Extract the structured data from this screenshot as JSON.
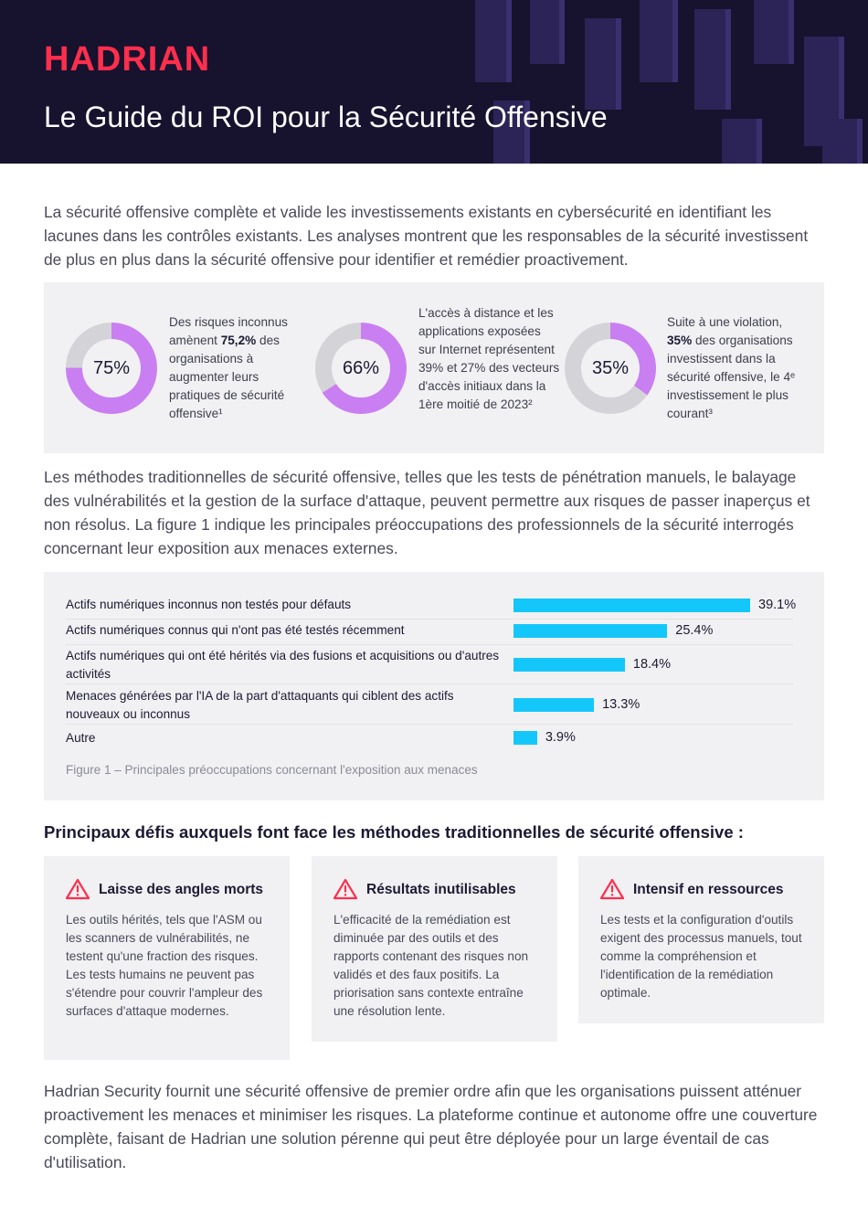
{
  "header": {
    "logo": "HADRIAN",
    "title": "Le Guide du ROI pour la Sécurité Offensive"
  },
  "intro": "La sécurité offensive complète et valide les investissements existants en cybersécurité en identifiant les lacunes dans les contrôles existants. Les analyses montrent que les responsables de la sécurité investissent de plus en plus dans la sécurité offensive pour identifier et remédier proactivement.",
  "stats": [
    {
      "pct_label": "75%",
      "value": 0.752,
      "text_before": "Des risques inconnus amènent ",
      "bold": "75,2%",
      "text_after": " des organisations à augmenter leurs pratiques de sécurité offensive¹"
    },
    {
      "pct_label": "66%",
      "value": 0.66,
      "text_before": "L'accès à distance et les applications exposées sur Internet représentent 39% et 27% des vecteurs d'accès initiaux dans la 1ère moitié de 2023²",
      "bold": "",
      "text_after": ""
    },
    {
      "pct_label": "35%",
      "value": 0.35,
      "text_before": "Suite à une violation, ",
      "bold": "35%",
      "text_after": " des organisations investissent dans la sécurité offensive, le 4ᵉ investissement le plus courant³"
    }
  ],
  "donut_colors": {
    "fill": "#c97ff2",
    "track": "#d4d4d8"
  },
  "para2": "Les méthodes traditionnelles de sécurité offensive, telles que les tests de pénétration manuels, le balayage des vulnérabilités et la gestion de la surface d'attaque, peuvent permettre aux risques de passer inaperçus et non résolus. La figure 1 indique les principales préoccupations des professionnels de la sécurité interrogés concernant leur exposition aux menaces externes.",
  "chart_data": {
    "type": "bar",
    "orientation": "horizontal",
    "categories": [
      "Actifs numériques inconnus non testés pour défauts",
      "Actifs numériques connus qui n'ont pas été testés récemment",
      "Actifs numériques qui ont été hérités via des fusions et acquisitions ou d'autres activités",
      "Menaces générées par l'IA de la part d'attaquants qui ciblent des actifs nouveaux ou inconnus",
      "Autre"
    ],
    "values": [
      39.1,
      25.4,
      18.4,
      13.3,
      3.9
    ],
    "value_labels": [
      "39.1%",
      "25.4%",
      "18.4%",
      "13.3%",
      "3.9%"
    ],
    "bar_color": "#14c7fa",
    "caption": "Figure 1 – Principales préoccupations concernant l'exposition aux menaces"
  },
  "challenges_title": "Principaux défis auxquels font face les méthodes traditionnelles de sécurité offensive :",
  "cards": [
    {
      "title": "Laisse des angles morts",
      "body": "Les outils hérités, tels que l'ASM ou les scanners de vulnérabilités, ne testent qu'une fraction des risques. Les tests humains ne peuvent pas s'étendre pour couvrir l'ampleur des surfaces d'attaque modernes."
    },
    {
      "title": "Résultats inutilisables",
      "body": "L'efficacité de la remédiation est diminuée par des outils et des rapports contenant des risques non validés et des faux positifs. La priorisation sans contexte entraîne une résolution lente."
    },
    {
      "title": "Intensif en ressources",
      "body": "Les tests et la configuration d'outils exigent des processus manuels, tout comme la compréhension et l'identification de la remédiation optimale."
    }
  ],
  "warning_icon": "warning-triangle-icon",
  "accent_color": "#ff2e4d",
  "outro": "Hadrian Security fournit une sécurité offensive de premier ordre afin que les organisations puissent atténuer proactivement les menaces et minimiser les risques. La plateforme continue et autonome offre une couverture complète, faisant de Hadrian une solution pérenne qui peut être déployée pour un large éventail de cas d'utilisation."
}
